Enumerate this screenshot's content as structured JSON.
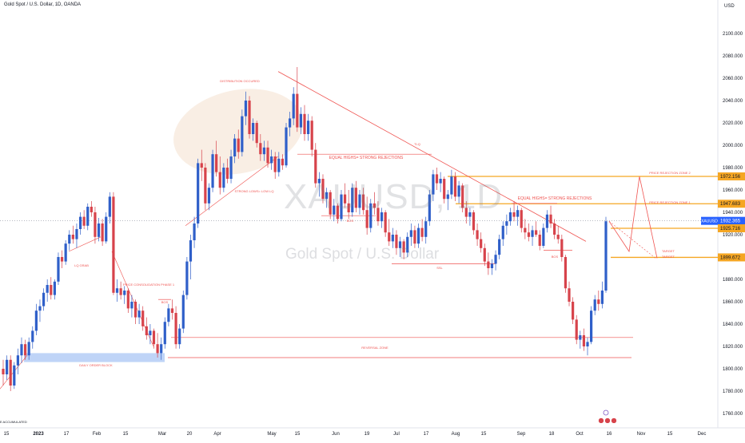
{
  "header": {
    "title": "Gold Spot / U.S. Dollar, 1D, OANDA",
    "currency": "USD"
  },
  "watermark": {
    "symbol": "XAUUSD, 1D",
    "description": "Gold Spot / U.S. Dollar"
  },
  "colors": {
    "up": "#2f5fc9",
    "down": "#d7434b",
    "annotation": "#ef5350",
    "zone": "#f5a623",
    "order_block": "#bfd4f7",
    "ellipse": "#f6e7d9"
  },
  "chart_data": {
    "type": "candlestick",
    "title": "Gold Spot / U.S. Dollar, 1D, OANDA",
    "ylim": [
      1750,
      2120
    ],
    "y_ticks": [
      1760,
      1780,
      1800,
      1820,
      1840,
      1860,
      1880,
      1900,
      1920,
      1940,
      1960,
      1980,
      2000,
      2020,
      2040,
      2060,
      2080,
      2100
    ],
    "x_tick_labels": [
      "15",
      "2023",
      "17",
      "Feb",
      "15",
      "Mar",
      "20",
      "Apr",
      "May",
      "15",
      "Jun",
      "19",
      "Jul",
      "17",
      "Aug",
      "15",
      "Sep",
      "18",
      "Oct",
      "16",
      "Nov",
      "15",
      "Dec"
    ],
    "price_tags": [
      {
        "value": 1972.156,
        "label": "1972.156",
        "kind": "zone"
      },
      {
        "value": 1947.683,
        "label": "1947.683",
        "kind": "zone"
      },
      {
        "value": 1932.365,
        "label": "1932.365",
        "kind": "last",
        "symbol": "XAUUSD"
      },
      {
        "value": 1925.716,
        "label": "1925.716",
        "kind": "zone"
      },
      {
        "value": 1899.672,
        "label": "1899.672",
        "kind": "zone"
      }
    ],
    "annotations": [
      {
        "text": "DISTRIBUTION OCCURED"
      },
      {
        "text": "STRONG LOWS= LOW LQ"
      },
      {
        "text": "EQUAL HIGHS= STRONG REJECTIONS"
      },
      {
        "text": "EQUAL HIGHS= STRONG REJECTIONS"
      },
      {
        "text": "TLQ"
      },
      {
        "text": "BOS"
      },
      {
        "text": "BOS"
      },
      {
        "text": "BOS"
      },
      {
        "text": "SSL"
      },
      {
        "text": "LQ GRAB"
      },
      {
        "text": "PRICE CONSOLIDATION PHASE 1"
      },
      {
        "text": "REVERSAL ZONE"
      },
      {
        "text": "DAILY ORDER BLOCK"
      },
      {
        "text": "PRICE REJECTION ZONE 2"
      },
      {
        "text": "PRICE REJECTION ZONE 1"
      },
      {
        "text": "TARGET"
      },
      {
        "text": "TARGET"
      }
    ],
    "footer_note": "E ACCUMULATED",
    "candles": [
      {
        "o": 1800,
        "h": 1808,
        "l": 1785,
        "c": 1795
      },
      {
        "o": 1795,
        "h": 1812,
        "l": 1790,
        "c": 1808
      },
      {
        "o": 1808,
        "h": 1812,
        "l": 1780,
        "c": 1785
      },
      {
        "o": 1785,
        "h": 1806,
        "l": 1782,
        "c": 1803
      },
      {
        "o": 1803,
        "h": 1818,
        "l": 1795,
        "c": 1812
      },
      {
        "o": 1812,
        "h": 1828,
        "l": 1805,
        "c": 1822
      },
      {
        "o": 1822,
        "h": 1826,
        "l": 1808,
        "c": 1812
      },
      {
        "o": 1812,
        "h": 1828,
        "l": 1808,
        "c": 1824
      },
      {
        "o": 1824,
        "h": 1838,
        "l": 1818,
        "c": 1834
      },
      {
        "o": 1834,
        "h": 1858,
        "l": 1830,
        "c": 1852
      },
      {
        "o": 1852,
        "h": 1862,
        "l": 1842,
        "c": 1856
      },
      {
        "o": 1856,
        "h": 1872,
        "l": 1852,
        "c": 1868
      },
      {
        "o": 1868,
        "h": 1880,
        "l": 1860,
        "c": 1875
      },
      {
        "o": 1875,
        "h": 1882,
        "l": 1862,
        "c": 1866
      },
      {
        "o": 1866,
        "h": 1880,
        "l": 1862,
        "c": 1878
      },
      {
        "o": 1878,
        "h": 1904,
        "l": 1875,
        "c": 1900
      },
      {
        "o": 1900,
        "h": 1906,
        "l": 1890,
        "c": 1896
      },
      {
        "o": 1896,
        "h": 1915,
        "l": 1893,
        "c": 1912
      },
      {
        "o": 1912,
        "h": 1924,
        "l": 1906,
        "c": 1920
      },
      {
        "o": 1920,
        "h": 1928,
        "l": 1912,
        "c": 1916
      },
      {
        "o": 1916,
        "h": 1930,
        "l": 1908,
        "c": 1925
      },
      {
        "o": 1925,
        "h": 1940,
        "l": 1920,
        "c": 1936
      },
      {
        "o": 1936,
        "h": 1942,
        "l": 1925,
        "c": 1928
      },
      {
        "o": 1928,
        "h": 1948,
        "l": 1924,
        "c": 1945
      },
      {
        "o": 1945,
        "h": 1950,
        "l": 1936,
        "c": 1940
      },
      {
        "o": 1940,
        "h": 1945,
        "l": 1912,
        "c": 1918
      },
      {
        "o": 1918,
        "h": 1935,
        "l": 1914,
        "c": 1930
      },
      {
        "o": 1930,
        "h": 1934,
        "l": 1910,
        "c": 1914
      },
      {
        "o": 1914,
        "h": 1940,
        "l": 1912,
        "c": 1936
      },
      {
        "o": 1936,
        "h": 1958,
        "l": 1930,
        "c": 1954
      },
      {
        "o": 1954,
        "h": 1958,
        "l": 1866,
        "c": 1868
      },
      {
        "o": 1868,
        "h": 1880,
        "l": 1860,
        "c": 1872
      },
      {
        "o": 1872,
        "h": 1878,
        "l": 1862,
        "c": 1866
      },
      {
        "o": 1866,
        "h": 1874,
        "l": 1858,
        "c": 1870
      },
      {
        "o": 1870,
        "h": 1872,
        "l": 1850,
        "c": 1854
      },
      {
        "o": 1854,
        "h": 1866,
        "l": 1846,
        "c": 1860
      },
      {
        "o": 1860,
        "h": 1862,
        "l": 1840,
        "c": 1846
      },
      {
        "o": 1846,
        "h": 1858,
        "l": 1840,
        "c": 1852
      },
      {
        "o": 1852,
        "h": 1856,
        "l": 1834,
        "c": 1838
      },
      {
        "o": 1838,
        "h": 1846,
        "l": 1826,
        "c": 1830
      },
      {
        "o": 1830,
        "h": 1840,
        "l": 1822,
        "c": 1834
      },
      {
        "o": 1834,
        "h": 1836,
        "l": 1818,
        "c": 1822
      },
      {
        "o": 1822,
        "h": 1832,
        "l": 1810,
        "c": 1814
      },
      {
        "o": 1814,
        "h": 1828,
        "l": 1808,
        "c": 1822
      },
      {
        "o": 1822,
        "h": 1846,
        "l": 1818,
        "c": 1842
      },
      {
        "o": 1842,
        "h": 1858,
        "l": 1838,
        "c": 1854
      },
      {
        "o": 1854,
        "h": 1862,
        "l": 1844,
        "c": 1850
      },
      {
        "o": 1850,
        "h": 1856,
        "l": 1818,
        "c": 1822
      },
      {
        "o": 1822,
        "h": 1840,
        "l": 1818,
        "c": 1836
      },
      {
        "o": 1836,
        "h": 1870,
        "l": 1832,
        "c": 1866
      },
      {
        "o": 1866,
        "h": 1900,
        "l": 1862,
        "c": 1896
      },
      {
        "o": 1896,
        "h": 1920,
        "l": 1880,
        "c": 1915
      },
      {
        "o": 1915,
        "h": 1936,
        "l": 1908,
        "c": 1930
      },
      {
        "o": 1930,
        "h": 1988,
        "l": 1926,
        "c": 1984
      },
      {
        "o": 1984,
        "h": 1996,
        "l": 1968,
        "c": 1980
      },
      {
        "o": 1980,
        "h": 1984,
        "l": 1942,
        "c": 1948
      },
      {
        "o": 1948,
        "h": 1966,
        "l": 1942,
        "c": 1962
      },
      {
        "o": 1962,
        "h": 1996,
        "l": 1958,
        "c": 1992
      },
      {
        "o": 1992,
        "h": 2004,
        "l": 1972,
        "c": 1976
      },
      {
        "o": 1976,
        "h": 1990,
        "l": 1956,
        "c": 1962
      },
      {
        "o": 1962,
        "h": 1984,
        "l": 1958,
        "c": 1980
      },
      {
        "o": 1980,
        "h": 1988,
        "l": 1966,
        "c": 1970
      },
      {
        "o": 1970,
        "h": 1996,
        "l": 1966,
        "c": 1990
      },
      {
        "o": 1990,
        "h": 2010,
        "l": 1984,
        "c": 2006
      },
      {
        "o": 2006,
        "h": 2014,
        "l": 1988,
        "c": 1994
      },
      {
        "o": 1994,
        "h": 2032,
        "l": 1990,
        "c": 2026
      },
      {
        "o": 2026,
        "h": 2048,
        "l": 2018,
        "c": 2040
      },
      {
        "o": 2040,
        "h": 2044,
        "l": 2006,
        "c": 2010
      },
      {
        "o": 2010,
        "h": 2024,
        "l": 2004,
        "c": 2020
      },
      {
        "o": 2020,
        "h": 2022,
        "l": 1998,
        "c": 2002
      },
      {
        "o": 2002,
        "h": 2010,
        "l": 1986,
        "c": 1992
      },
      {
        "o": 1992,
        "h": 2004,
        "l": 1986,
        "c": 1998
      },
      {
        "o": 1998,
        "h": 2004,
        "l": 1980,
        "c": 1984
      },
      {
        "o": 1984,
        "h": 1996,
        "l": 1978,
        "c": 1990
      },
      {
        "o": 1990,
        "h": 1994,
        "l": 1970,
        "c": 1976
      },
      {
        "o": 1976,
        "h": 1994,
        "l": 1972,
        "c": 1988
      },
      {
        "o": 1988,
        "h": 1992,
        "l": 1978,
        "c": 1982
      },
      {
        "o": 1982,
        "h": 2020,
        "l": 1980,
        "c": 2016
      },
      {
        "o": 2016,
        "h": 2030,
        "l": 2008,
        "c": 2024
      },
      {
        "o": 2024,
        "h": 2052,
        "l": 2018,
        "c": 2046
      },
      {
        "o": 2046,
        "h": 2070,
        "l": 2012,
        "c": 2016
      },
      {
        "o": 2016,
        "h": 2034,
        "l": 2010,
        "c": 2028
      },
      {
        "o": 2028,
        "h": 2036,
        "l": 2004,
        "c": 2010
      },
      {
        "o": 2010,
        "h": 2028,
        "l": 2004,
        "c": 2022
      },
      {
        "o": 2022,
        "h": 2026,
        "l": 1990,
        "c": 1996
      },
      {
        "o": 1996,
        "h": 2002,
        "l": 1962,
        "c": 1966
      },
      {
        "o": 1966,
        "h": 1976,
        "l": 1954,
        "c": 1970
      },
      {
        "o": 1970,
        "h": 1974,
        "l": 1948,
        "c": 1952
      },
      {
        "o": 1952,
        "h": 1962,
        "l": 1944,
        "c": 1958
      },
      {
        "o": 1958,
        "h": 1960,
        "l": 1934,
        "c": 1938
      },
      {
        "o": 1938,
        "h": 1952,
        "l": 1932,
        "c": 1946
      },
      {
        "o": 1946,
        "h": 1948,
        "l": 1930,
        "c": 1934
      },
      {
        "o": 1934,
        "h": 1960,
        "l": 1932,
        "c": 1956
      },
      {
        "o": 1956,
        "h": 1966,
        "l": 1944,
        "c": 1948
      },
      {
        "o": 1948,
        "h": 1960,
        "l": 1934,
        "c": 1940
      },
      {
        "o": 1940,
        "h": 1966,
        "l": 1936,
        "c": 1962
      },
      {
        "o": 1962,
        "h": 1968,
        "l": 1940,
        "c": 1944
      },
      {
        "o": 1944,
        "h": 1960,
        "l": 1938,
        "c": 1956
      },
      {
        "o": 1956,
        "h": 1962,
        "l": 1938,
        "c": 1942
      },
      {
        "o": 1942,
        "h": 1954,
        "l": 1920,
        "c": 1926
      },
      {
        "o": 1926,
        "h": 1952,
        "l": 1922,
        "c": 1948
      },
      {
        "o": 1948,
        "h": 1958,
        "l": 1938,
        "c": 1944
      },
      {
        "o": 1944,
        "h": 1950,
        "l": 1928,
        "c": 1932
      },
      {
        "o": 1932,
        "h": 1944,
        "l": 1926,
        "c": 1940
      },
      {
        "o": 1940,
        "h": 1942,
        "l": 1918,
        "c": 1922
      },
      {
        "o": 1922,
        "h": 1934,
        "l": 1910,
        "c": 1914
      },
      {
        "o": 1914,
        "h": 1926,
        "l": 1908,
        "c": 1920
      },
      {
        "o": 1920,
        "h": 1924,
        "l": 1902,
        "c": 1908
      },
      {
        "o": 1908,
        "h": 1918,
        "l": 1900,
        "c": 1914
      },
      {
        "o": 1914,
        "h": 1916,
        "l": 1898,
        "c": 1904
      },
      {
        "o": 1904,
        "h": 1922,
        "l": 1900,
        "c": 1918
      },
      {
        "o": 1918,
        "h": 1930,
        "l": 1910,
        "c": 1924
      },
      {
        "o": 1924,
        "h": 1928,
        "l": 1908,
        "c": 1912
      },
      {
        "o": 1912,
        "h": 1930,
        "l": 1908,
        "c": 1926
      },
      {
        "o": 1926,
        "h": 1934,
        "l": 1914,
        "c": 1918
      },
      {
        "o": 1918,
        "h": 1936,
        "l": 1912,
        "c": 1932
      },
      {
        "o": 1932,
        "h": 1960,
        "l": 1928,
        "c": 1956
      },
      {
        "o": 1956,
        "h": 1978,
        "l": 1950,
        "c": 1974
      },
      {
        "o": 1974,
        "h": 1980,
        "l": 1960,
        "c": 1966
      },
      {
        "o": 1966,
        "h": 1976,
        "l": 1958,
        "c": 1970
      },
      {
        "o": 1970,
        "h": 1972,
        "l": 1948,
        "c": 1952
      },
      {
        "o": 1952,
        "h": 1960,
        "l": 1942,
        "c": 1956
      },
      {
        "o": 1956,
        "h": 1978,
        "l": 1952,
        "c": 1972
      },
      {
        "o": 1972,
        "h": 1976,
        "l": 1950,
        "c": 1954
      },
      {
        "o": 1954,
        "h": 1968,
        "l": 1948,
        "c": 1964
      },
      {
        "o": 1964,
        "h": 1966,
        "l": 1940,
        "c": 1944
      },
      {
        "o": 1944,
        "h": 1950,
        "l": 1930,
        "c": 1936
      },
      {
        "o": 1936,
        "h": 1944,
        "l": 1928,
        "c": 1940
      },
      {
        "o": 1940,
        "h": 1942,
        "l": 1920,
        "c": 1924
      },
      {
        "o": 1924,
        "h": 1930,
        "l": 1910,
        "c": 1916
      },
      {
        "o": 1916,
        "h": 1922,
        "l": 1904,
        "c": 1908
      },
      {
        "o": 1908,
        "h": 1912,
        "l": 1892,
        "c": 1896
      },
      {
        "o": 1896,
        "h": 1904,
        "l": 1884,
        "c": 1890
      },
      {
        "o": 1890,
        "h": 1898,
        "l": 1884,
        "c": 1894
      },
      {
        "o": 1894,
        "h": 1906,
        "l": 1888,
        "c": 1902
      },
      {
        "o": 1902,
        "h": 1920,
        "l": 1898,
        "c": 1916
      },
      {
        "o": 1916,
        "h": 1932,
        "l": 1910,
        "c": 1928
      },
      {
        "o": 1928,
        "h": 1938,
        "l": 1920,
        "c": 1932
      },
      {
        "o": 1932,
        "h": 1944,
        "l": 1928,
        "c": 1940
      },
      {
        "o": 1940,
        "h": 1950,
        "l": 1932,
        "c": 1936
      },
      {
        "o": 1936,
        "h": 1946,
        "l": 1928,
        "c": 1942
      },
      {
        "o": 1942,
        "h": 1944,
        "l": 1922,
        "c": 1926
      },
      {
        "o": 1926,
        "h": 1934,
        "l": 1916,
        "c": 1922
      },
      {
        "o": 1922,
        "h": 1930,
        "l": 1914,
        "c": 1918
      },
      {
        "o": 1918,
        "h": 1928,
        "l": 1910,
        "c": 1924
      },
      {
        "o": 1924,
        "h": 1932,
        "l": 1918,
        "c": 1920
      },
      {
        "o": 1920,
        "h": 1924,
        "l": 1906,
        "c": 1910
      },
      {
        "o": 1910,
        "h": 1930,
        "l": 1908,
        "c": 1926
      },
      {
        "o": 1926,
        "h": 1942,
        "l": 1922,
        "c": 1938
      },
      {
        "o": 1938,
        "h": 1946,
        "l": 1926,
        "c": 1930
      },
      {
        "o": 1930,
        "h": 1934,
        "l": 1916,
        "c": 1920
      },
      {
        "o": 1920,
        "h": 1928,
        "l": 1912,
        "c": 1916
      },
      {
        "o": 1916,
        "h": 1920,
        "l": 1896,
        "c": 1900
      },
      {
        "o": 1900,
        "h": 1902,
        "l": 1868,
        "c": 1872
      },
      {
        "o": 1872,
        "h": 1878,
        "l": 1856,
        "c": 1860
      },
      {
        "o": 1860,
        "h": 1864,
        "l": 1840,
        "c": 1844
      },
      {
        "o": 1844,
        "h": 1848,
        "l": 1822,
        "c": 1826
      },
      {
        "o": 1826,
        "h": 1834,
        "l": 1818,
        "c": 1830
      },
      {
        "o": 1830,
        "h": 1836,
        "l": 1816,
        "c": 1820
      },
      {
        "o": 1820,
        "h": 1828,
        "l": 1812,
        "c": 1824
      },
      {
        "o": 1824,
        "h": 1856,
        "l": 1822,
        "c": 1852
      },
      {
        "o": 1852,
        "h": 1866,
        "l": 1848,
        "c": 1862
      },
      {
        "o": 1862,
        "h": 1870,
        "l": 1852,
        "c": 1858
      },
      {
        "o": 1858,
        "h": 1878,
        "l": 1854,
        "c": 1870
      },
      {
        "o": 1870,
        "h": 1936,
        "l": 1868,
        "c": 1932
      }
    ]
  }
}
